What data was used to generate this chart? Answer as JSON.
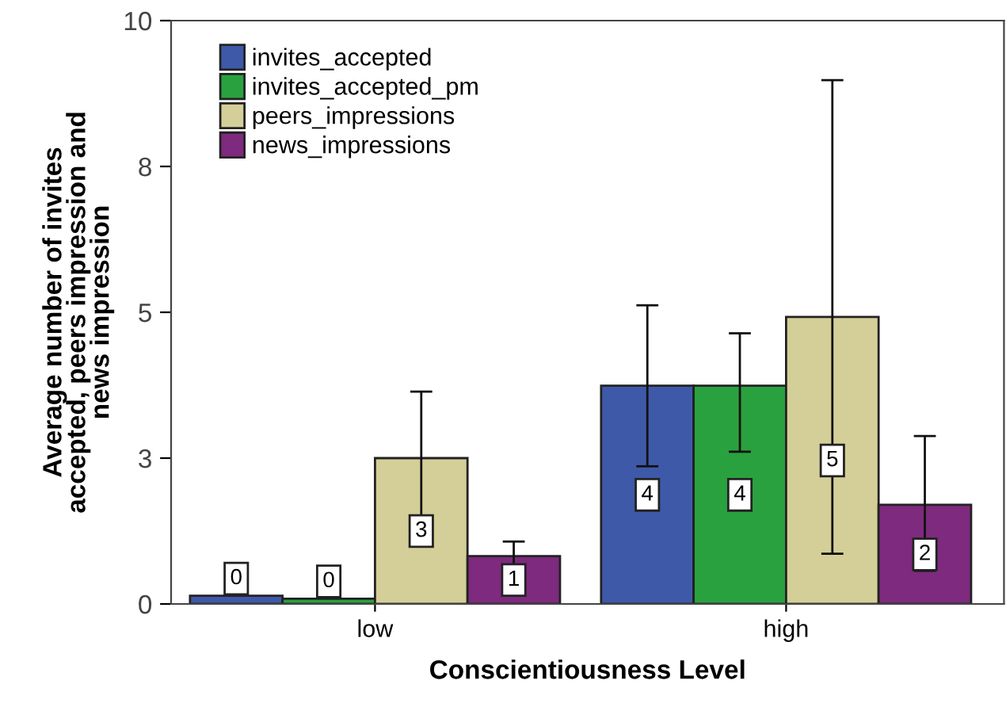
{
  "chart_data": {
    "type": "bar",
    "xlabel": "Conscientiousness Level",
    "ylabel": "Average number of invites\naccepted, peers impression and\nnews impression",
    "categories": [
      "low",
      "high"
    ],
    "series": [
      {
        "name": "invites_accepted",
        "color": "#3e59a8",
        "values": [
          0.14,
          3.74
        ],
        "errors": [
          null,
          1.38
        ],
        "value_labels": [
          "0",
          "4"
        ]
      },
      {
        "name": "invites_accepted_pm",
        "color": "#2aa13f",
        "values": [
          0.09,
          3.74
        ],
        "errors": [
          null,
          [
            2.61,
            4.64
          ]
        ],
        "value_labels": [
          "0",
          "4"
        ]
      },
      {
        "name": "peers_impressions",
        "color": "#d4cf98",
        "values": [
          2.5,
          4.92
        ],
        "errors": [
          1.14,
          [
            0.86,
            8.98
          ]
        ],
        "value_labels": [
          "3",
          "5"
        ]
      },
      {
        "name": "news_impressions",
        "color": "#7e2a7e",
        "values": [
          0.82,
          1.7
        ],
        "errors": [
          0.25,
          [
            0.57,
            2.88
          ]
        ],
        "value_labels": [
          "1",
          "2"
        ]
      }
    ],
    "ylim": [
      0,
      10
    ],
    "yticks": [
      0,
      {
        "value": 2.5,
        "label": "3"
      },
      5,
      {
        "value": 7.5,
        "label": "8"
      },
      10
    ],
    "grid": false,
    "legend": "top left"
  }
}
